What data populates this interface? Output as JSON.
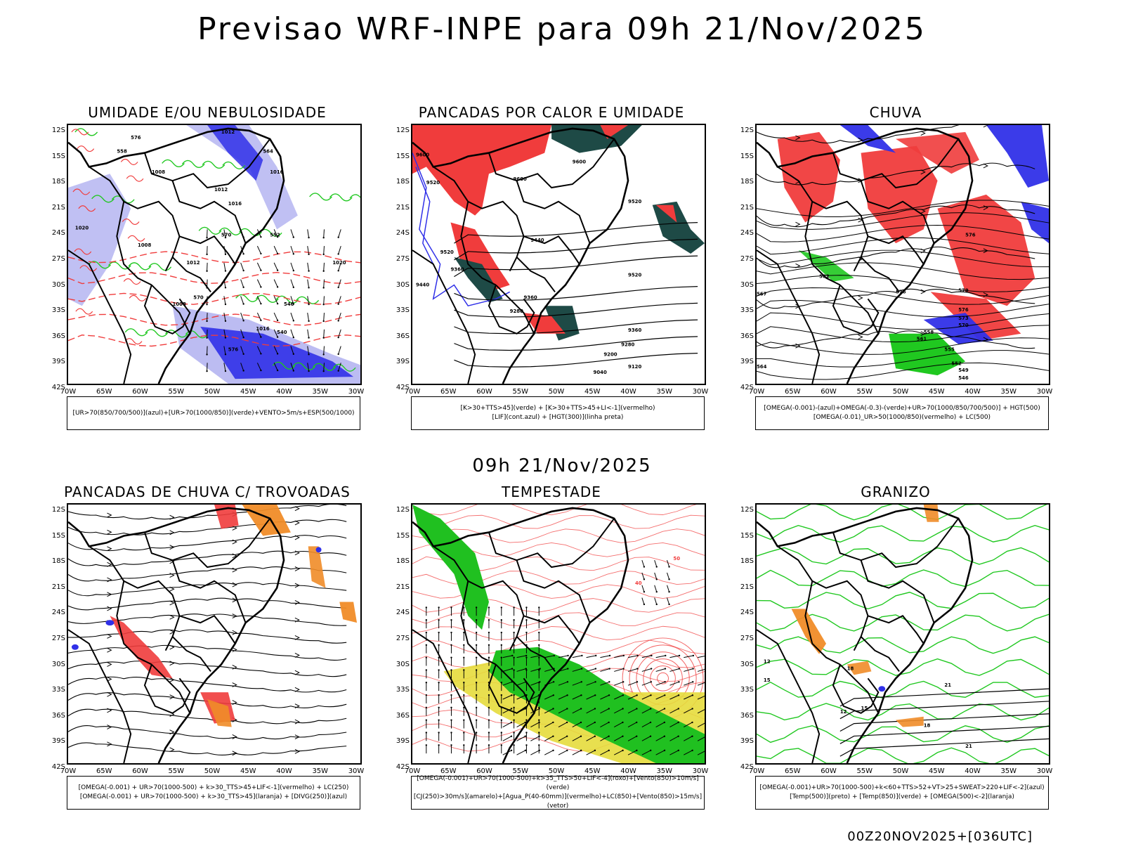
{
  "title": "Previsao WRF-INPE  para 09h 21/Nov/2025",
  "mid_title": "09h 21/Nov/2025",
  "footer": "00Z20NOV2025+[036UTC]",
  "lat_labels": [
    "12S",
    "15S",
    "18S",
    "21S",
    "24S",
    "27S",
    "30S",
    "33S",
    "36S",
    "39S",
    "42S"
  ],
  "lon_labels": [
    "70W",
    "65W",
    "60W",
    "55W",
    "50W",
    "45W",
    "40W",
    "35W",
    "30W"
  ],
  "colors": {
    "blue": "#3030e8",
    "lightblue": "#b0b0f0",
    "green": "#20c820",
    "red": "#f03c3c",
    "darkgreen": "#1e4a46",
    "orange": "#f08c28",
    "yellow": "#e6dc3c"
  },
  "panels": [
    {
      "id": "umidade",
      "title": "UMIDADE E/OU NEBULOSIDADE",
      "legend": [
        "[UR>70(850/700/500)](azul)+[UR>70(1000/850)](verde)+VENTO>5m/s+ESP(500/1000)"
      ],
      "contour_labels": [
        "1012",
        "1016",
        "1008",
        "1012",
        "1016",
        "1008",
        "1020",
        "1012",
        "1008",
        "1016",
        "1020",
        "576",
        "570",
        "564",
        "558",
        "552",
        "546",
        "540",
        "576",
        "570"
      ]
    },
    {
      "id": "pancadas_calor",
      "title": "PANCADAS POR CALOR E UMIDADE",
      "legend": [
        "[K>30+TTS>45](verde) + [K>30+TTS>45+LI<-1](vermelho)",
        "[LIF](cont.azul) + [HGT(300)](linha preta)"
      ],
      "contour_labels": [
        "9600",
        "9520",
        "9600",
        "9600",
        "9520",
        "9520",
        "9440",
        "9360",
        "9440",
        "9360",
        "9280",
        "9520",
        "9360",
        "9280",
        "9200",
        "9120",
        "9040"
      ]
    },
    {
      "id": "chuva",
      "title": "CHUVA",
      "legend": [
        "[OMEGA(-0.001)-(azul)+OMEGA(-0.3)-(verde)+UR>70(1000/850/700/500)] + HGT(500)",
        "[OMEGA(-0.01)_UR>50(1000/850)(vermelho) + LC(500)"
      ],
      "contour_labels": [
        "576",
        "582",
        "576",
        "579",
        "576",
        "573",
        "570",
        "567",
        "564",
        "561",
        "558",
        "555",
        "552",
        "549",
        "546"
      ]
    },
    {
      "id": "trovoadas",
      "title": "PANCADAS DE CHUVA C/ TROVOADAS",
      "legend": [
        "[OMEGA(-0.001) + UR>70(1000-500) + k>30_TTS>45+LIF<-1](vermelho) + LC(250)",
        "[OMEGA(-0.001) + UR>70(1000-500) + k>30_TTS>45](laranja) + [DIVG(250)](azul)"
      ],
      "contour_labels": []
    },
    {
      "id": "tempestade",
      "title": "TEMPESTADE",
      "legend": [
        "[OMEGA(-0.001)+UR>70(1000-500)+k>35_TTS>50+LIF<-4](roxo)+[Vento(850)>10m/s](verde)",
        "[CJ(250)>30m/s](amarelo)+[Agua_P(40-60mm)](vermelho)+LC(850)+[Vento(850)>15m/s](vetor)"
      ],
      "contour_labels": [
        "50",
        "40"
      ]
    },
    {
      "id": "granizo",
      "title": "GRANIZO",
      "legend": [
        "[OMEGA(-0.001)+UR>70(1000-500)+k<60+TTS>52+VT>25+SWEAT>220+LIF<-2](azul)",
        "[Temp(500)](preto) + [Temp(850)](verde) + [OMEGA(500)<-2](laranja)"
      ],
      "contour_labels": [
        "12",
        "15",
        "18",
        "21",
        "12",
        "15",
        "18",
        "21"
      ]
    }
  ]
}
